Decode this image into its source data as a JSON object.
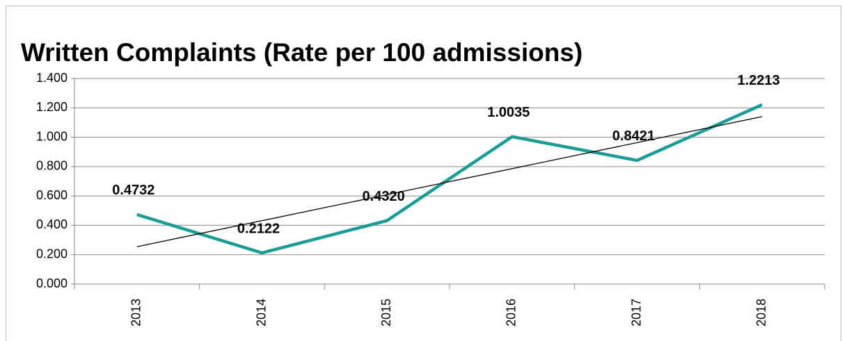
{
  "chart_data": {
    "type": "line",
    "title": "Written Complaints (Rate per 100 admissions)",
    "categories": [
      "2013",
      "2014",
      "2015",
      "2016",
      "2017",
      "2018"
    ],
    "values": [
      0.4732,
      0.2122,
      0.432,
      1.0035,
      0.8421,
      1.2213
    ],
    "value_labels": [
      "0.4732",
      "0.2122",
      "0.4320",
      "1.0035",
      "0.8421",
      "1.2213"
    ],
    "color": "#1a9c96",
    "trendline": "linear",
    "ylim": [
      0,
      1.4
    ],
    "yticks": [
      {
        "value": 0,
        "label": "0.000"
      },
      {
        "value": 0.2,
        "label": "0.200"
      },
      {
        "value": 0.4,
        "label": "0.400"
      },
      {
        "value": 0.6,
        "label": "0.600"
      },
      {
        "value": 0.8,
        "label": "0.800"
      },
      {
        "value": 1.0,
        "label": "1.000"
      },
      {
        "value": 1.2,
        "label": "1.200"
      },
      {
        "value": 1.4,
        "label": "1.400"
      }
    ],
    "grid": true
  }
}
